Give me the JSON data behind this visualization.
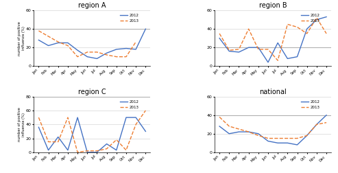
{
  "months": [
    "Jan",
    "Feb",
    "Mar",
    "Apr",
    "May",
    "Jun",
    "Jul",
    "Aug",
    "Sep",
    "Oct",
    "Nov",
    "Dec"
  ],
  "region_A": {
    "title": "region A",
    "y2012": [
      28,
      22,
      25,
      25,
      17,
      10,
      8,
      14,
      18,
      19,
      18,
      40
    ],
    "y2013": [
      38,
      32,
      26,
      22,
      10,
      15,
      15,
      12,
      10,
      10,
      26,
      null
    ],
    "ylim": [
      0,
      60
    ],
    "yticks": [
      0,
      20,
      40,
      60
    ],
    "hline": 40
  },
  "region_B": {
    "title": "region B",
    "y2012": [
      30,
      16,
      15,
      20,
      20,
      4,
      25,
      8,
      10,
      40,
      50,
      53
    ],
    "y2013": [
      35,
      17,
      18,
      40,
      18,
      18,
      6,
      45,
      42,
      35,
      52,
      35
    ],
    "ylim": [
      0,
      60
    ],
    "yticks": [
      0,
      20,
      40,
      60
    ],
    "hline": 20
  },
  "region_C": {
    "title": "region C",
    "y2012": [
      36,
      3,
      22,
      3,
      50,
      0,
      0,
      12,
      3,
      50,
      50,
      30
    ],
    "y2013": [
      50,
      15,
      15,
      50,
      0,
      2,
      2,
      5,
      18,
      3,
      40,
      60
    ],
    "ylim": [
      0,
      80
    ],
    "yticks": [
      0,
      20,
      40,
      60,
      80
    ],
    "hline": 80
  },
  "national": {
    "title": "national",
    "y2012": [
      28,
      20,
      22,
      22,
      20,
      12,
      10,
      10,
      8,
      18,
      30,
      40
    ],
    "y2013": [
      38,
      28,
      25,
      22,
      18,
      15,
      15,
      15,
      15,
      18,
      30,
      32
    ],
    "ylim": [
      0,
      60
    ],
    "yticks": [
      0,
      20,
      40,
      60
    ],
    "hline": 40
  },
  "color_2012": "#4472C4",
  "color_2013": "#ED7D31",
  "ylabel": "number of positive\ninfluenza (%)",
  "legend_2012": "2012",
  "legend_2013": "2013",
  "bg_color": "#ffffff",
  "hline_color": "#808080"
}
